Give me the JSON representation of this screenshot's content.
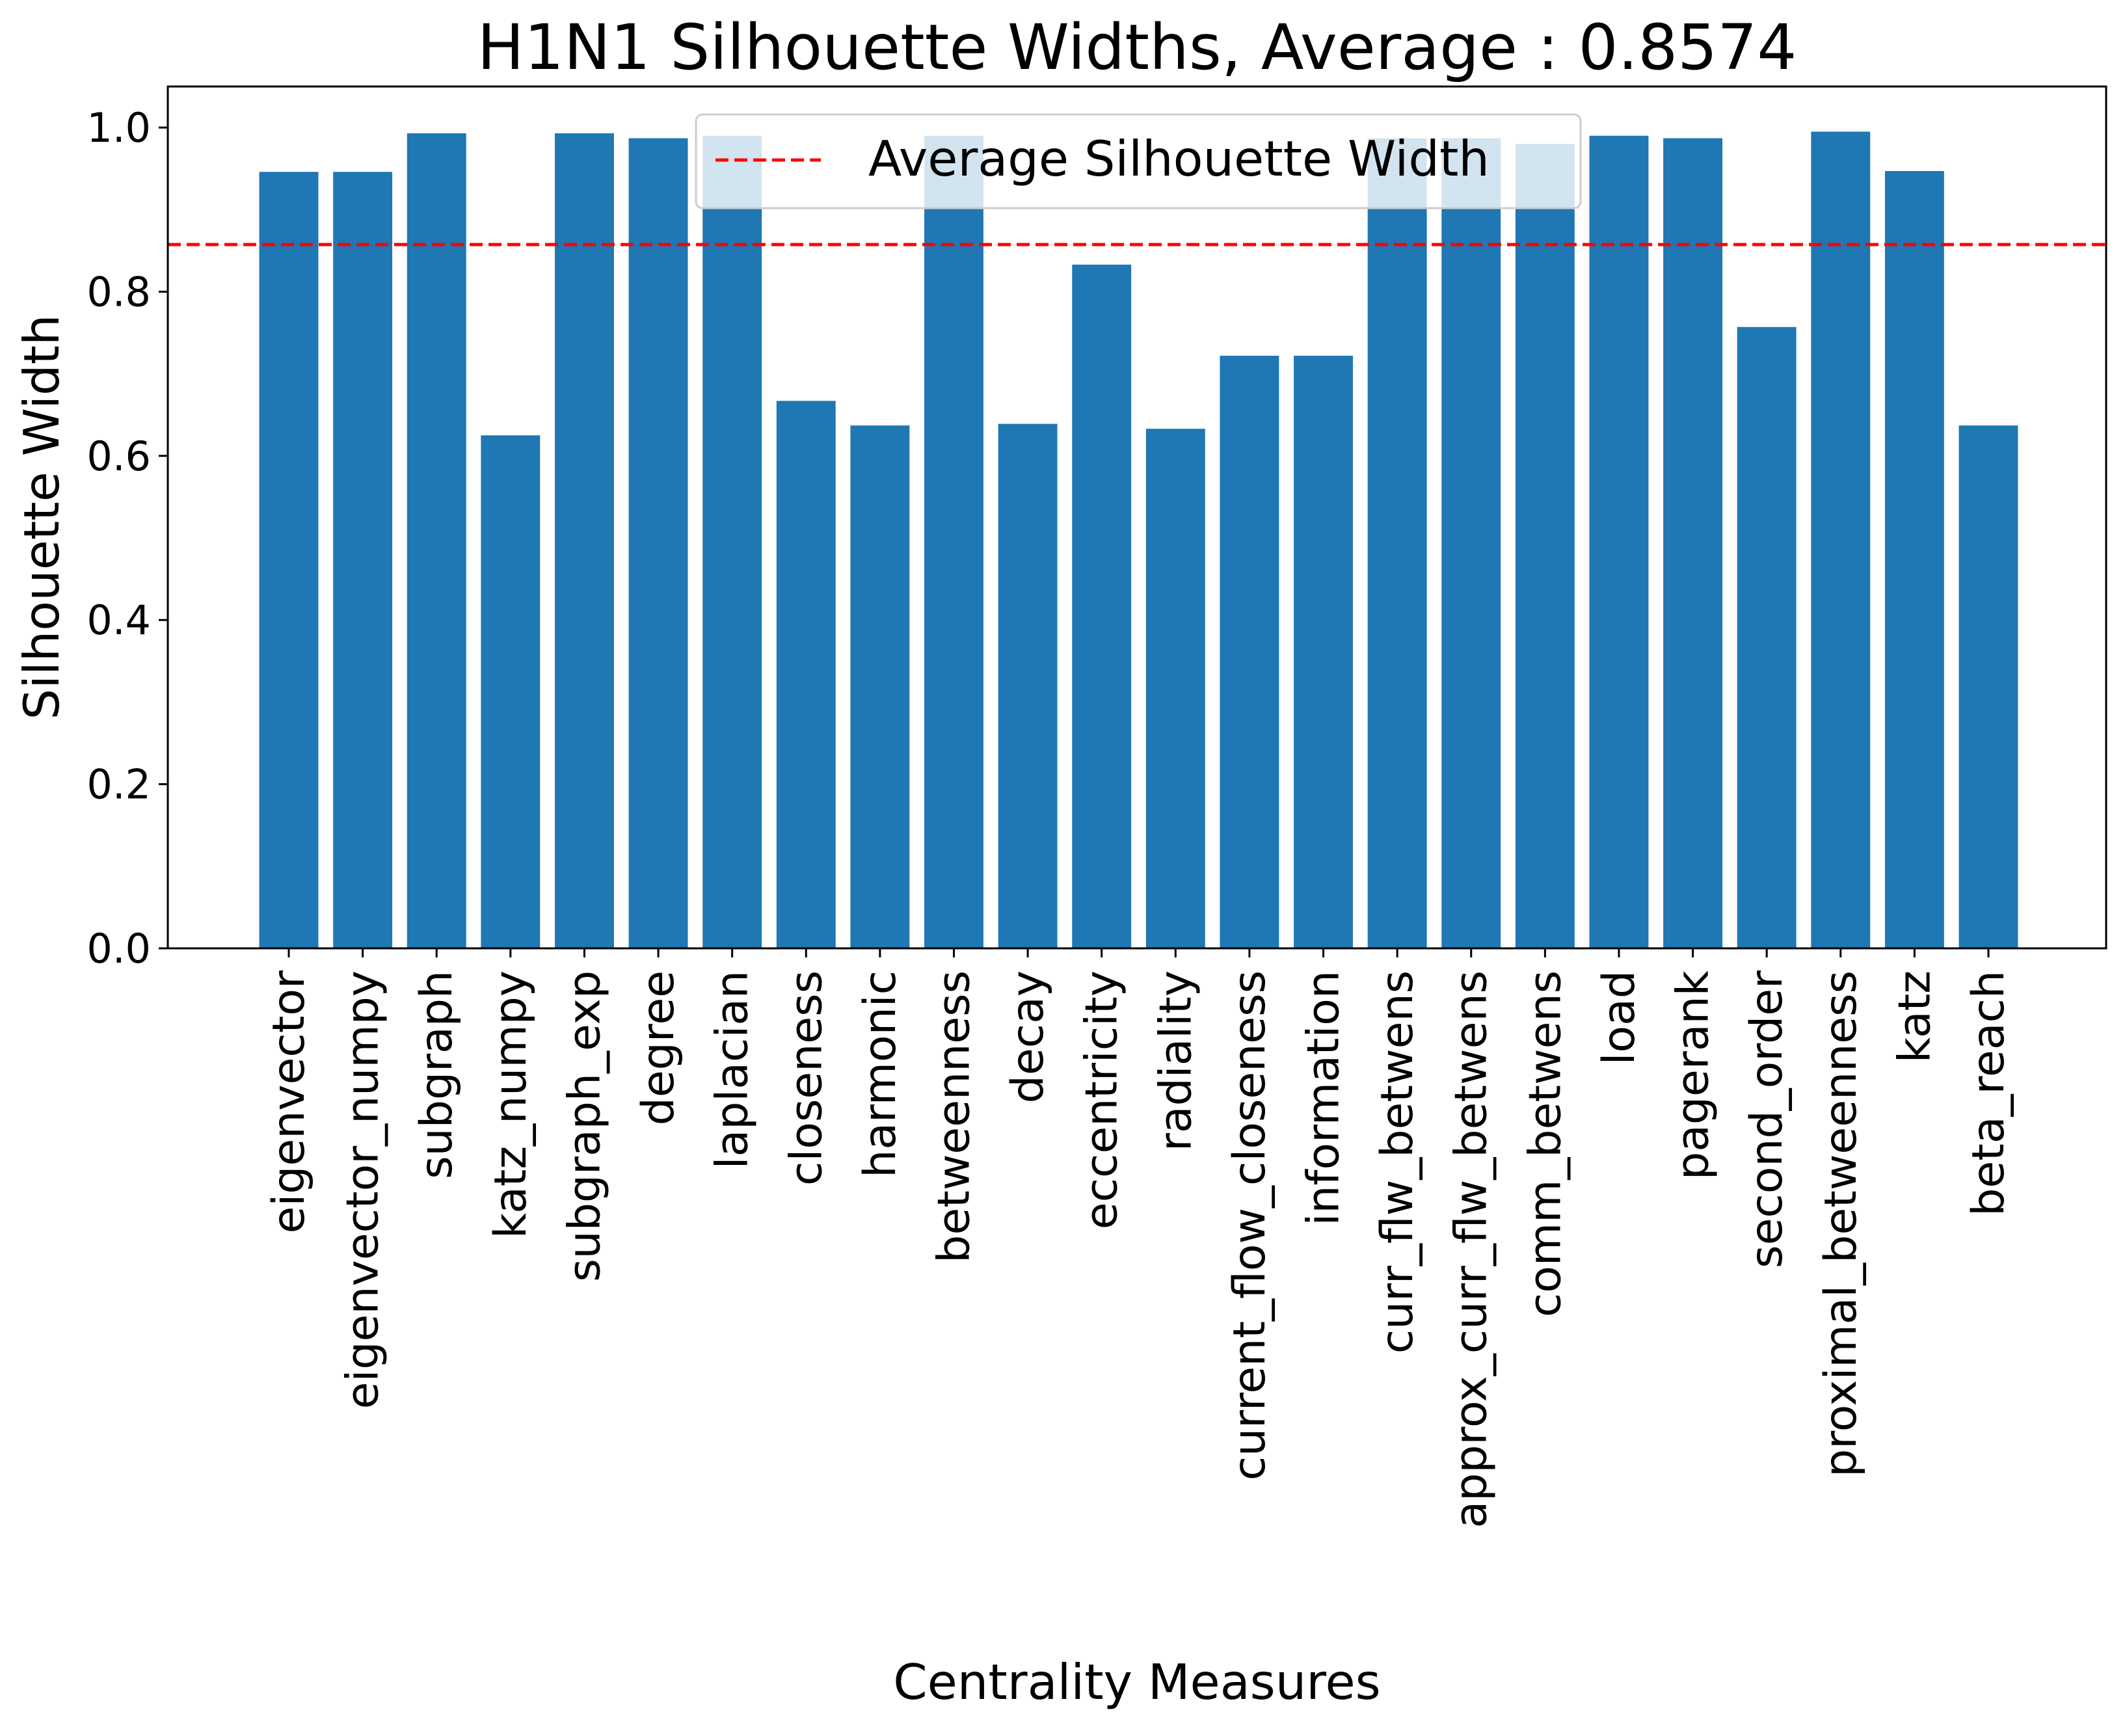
{
  "chart_data": {
    "type": "bar",
    "title": "H1N1 Silhouette Widths, Average : 0.8574",
    "xlabel": "Centrality Measures",
    "ylabel": "Silhouette Width",
    "ylim": [
      0,
      1.05
    ],
    "yticks": [
      "0.0",
      "0.2",
      "0.4",
      "0.6",
      "0.8",
      "1.0"
    ],
    "yticks_values": [
      0,
      0.2,
      0.4,
      0.6,
      0.8,
      1.0
    ],
    "categories": [
      "eigenvector",
      "eigenvector_numpy",
      "subgraph",
      "katz_numpy",
      "subgraph_exp",
      "degree",
      "laplacian",
      "closeness",
      "harmonic",
      "betweenness",
      "decay",
      "eccentricity",
      "radiality",
      "current_flow_closeness",
      "information",
      "curr_flw_betwens",
      "approx_curr_flw_betwens",
      "comm_betwens",
      "load",
      "pagerank",
      "second_order",
      "proximal_betweenness",
      "katz",
      "beta_reach"
    ],
    "values": [
      0.946,
      0.946,
      0.993,
      0.625,
      0.993,
      0.987,
      0.99,
      0.667,
      0.637,
      0.99,
      0.639,
      0.833,
      0.633,
      0.722,
      0.722,
      0.987,
      0.987,
      0.98,
      0.99,
      0.987,
      0.757,
      0.995,
      0.947,
      0.637
    ],
    "average": 0.8574,
    "bar_color": "#1f77b4",
    "average_line_color": "#ff0000",
    "legend": {
      "entries": [
        "Average Silhouette Width"
      ],
      "placement": "top-center"
    },
    "grid": false
  }
}
